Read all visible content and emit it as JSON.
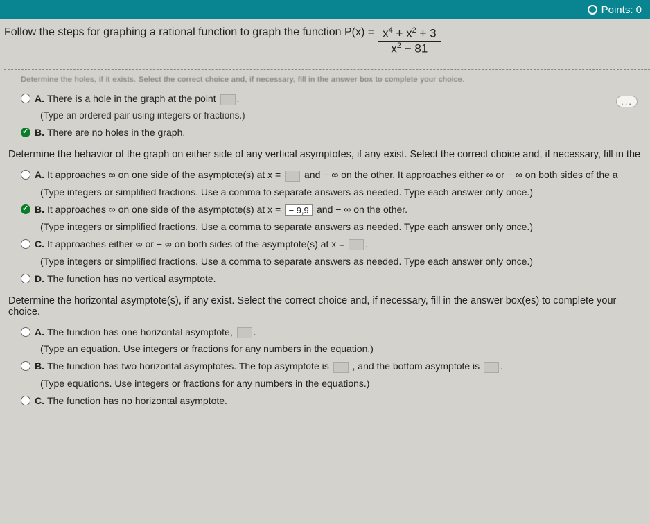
{
  "topbar": {
    "points_label": "Points: 0"
  },
  "prompt": {
    "lead": "Follow the steps for graphing a rational function to graph the function P(x) =",
    "numerator_html": "x⁴ + x² + 3",
    "denominator_html": "x² − 81"
  },
  "blurry_line": "Determine the holes, if it exists. Select the correct choice and, if necessary, fill in the answer box to complete your choice.",
  "holes": {
    "A_text": "There is a hole in the graph at the point",
    "A_hint": "(Type an ordered pair using integers or fractions.)",
    "B_text": "There are no holes in the graph."
  },
  "va_prompt": "Determine the behavior of the graph on either side of any vertical asymptotes, if any exist. Select the correct choice and, if necessary, fill in the",
  "va": {
    "A_text1": "It approaches ∞ on one side of the asymptote(s) at x =",
    "A_text2": "and − ∞ on the other. It approaches either ∞ or − ∞ on both sides of the a",
    "A_hint": "(Type integers or simplified fractions. Use a comma to separate answers as needed. Type each answer only once.)",
    "B_text1": "It approaches ∞ on one side of the asymptote(s) at x =",
    "B_fill": "− 9,9",
    "B_text2": "and − ∞ on the other.",
    "B_hint": "(Type integers or simplified fractions. Use a comma to separate answers as needed. Type each answer only once.)",
    "C_text": "It approaches either ∞ or − ∞ on both sides of the asymptote(s) at x =",
    "C_hint": "(Type integers or simplified fractions. Use a comma to separate answers as needed. Type each answer only once.)",
    "D_text": "The function has no vertical asymptote."
  },
  "ha_prompt": "Determine the horizontal asymptote(s), if any exist. Select the correct choice and, if necessary, fill in the answer box(es) to complete your choice.",
  "ha": {
    "A_text": "The function has one horizontal asymptote,",
    "A_hint": "(Type an equation. Use integers or fractions for any numbers in the equation.)",
    "B_text1": "The function has two horizontal asymptotes. The top asymptote is",
    "B_text2": ", and the bottom asymptote is",
    "B_hint": "(Type equations. Use integers or fractions for any numbers in the equations.)",
    "C_text": "The function has no horizontal asymptote."
  },
  "letters": {
    "A": "A.",
    "B": "B.",
    "C": "C.",
    "D": "D."
  },
  "ellipsis": "..."
}
